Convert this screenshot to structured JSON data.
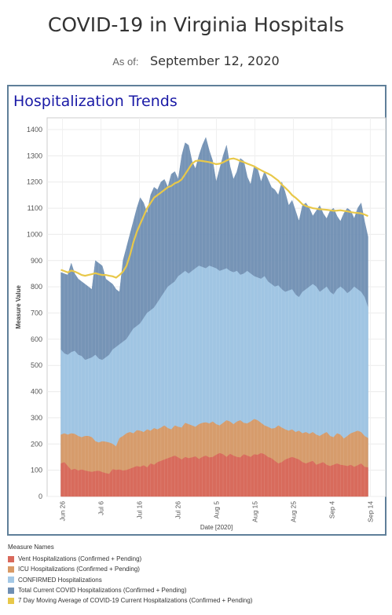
{
  "header": {
    "title": "COVID-19 in Virginia Hospitals",
    "asof_label": "As of:",
    "asof_date": "September 12, 2020"
  },
  "panel": {
    "title": "Hospitalization Trends"
  },
  "legend": {
    "title": "Measure Names",
    "items": [
      {
        "label": "Vent Hospitalizations (Confirmed + Pending)",
        "color": "#d9695c"
      },
      {
        "label": "ICU Hospitalizations (Confirmed + Pending)",
        "color": "#d99a66"
      },
      {
        "label": "CONFIRMED Hospitalizations",
        "color": "#a3c8e6"
      },
      {
        "label": "Total Current COVID Hospitalizations (Confirmed + Pending)",
        "color": "#6f8fb3"
      },
      {
        "label": "7 Day Moving Average of COVID-19 Current Hospitalizations (Confirmed + Pending)",
        "color": "#e8c84a"
      }
    ]
  },
  "chart_data": {
    "type": "area",
    "xlabel": "Date [2020]",
    "ylabel": "Measure Value",
    "ylim": [
      0,
      1400
    ],
    "yticks": [
      0,
      100,
      200,
      300,
      400,
      500,
      600,
      700,
      800,
      900,
      1000,
      1100,
      1200,
      1300,
      1400
    ],
    "xticks": [
      {
        "label": "Jun 26",
        "x": 4
      },
      {
        "label": "Jul 6",
        "x": 14
      },
      {
        "label": "Jul 16",
        "x": 24
      },
      {
        "label": "Jul 26",
        "x": 34
      },
      {
        "label": "Aug 5",
        "x": 44
      },
      {
        "label": "Aug 15",
        "x": 54
      },
      {
        "label": "Aug 25",
        "x": 64
      },
      {
        "label": "Sep 4",
        "x": 74
      },
      {
        "label": "Sep 14",
        "x": 84
      }
    ],
    "x_start": "Jun 22",
    "x_end": "Sep 12",
    "grid": true,
    "series": [
      {
        "name": "Vent Hospitalizations (Confirmed + Pending)",
        "values": [
          125,
          130,
          115,
          100,
          105,
          98,
          102,
          98,
          95,
          93,
          96,
          97,
          92,
          88,
          85,
          103,
          100,
          102,
          98,
          100,
          105,
          110,
          115,
          112,
          118,
          110,
          125,
          120,
          130,
          135,
          140,
          145,
          150,
          155,
          148,
          140,
          150,
          145,
          148,
          152,
          142,
          150,
          155,
          148,
          150,
          158,
          165,
          160,
          150,
          162,
          155,
          150,
          148,
          160,
          155,
          150,
          160,
          158,
          165,
          160,
          150,
          145,
          135,
          125,
          130,
          140,
          145,
          150,
          145,
          140,
          130,
          125,
          130,
          135,
          120,
          125,
          130,
          120,
          115,
          120,
          125,
          120,
          118,
          115,
          120,
          112,
          118,
          125,
          112,
          110
        ]
      },
      {
        "name": "ICU Hospitalizations (Confirmed + Pending)",
        "values": [
          235,
          240,
          235,
          240,
          238,
          230,
          225,
          230,
          230,
          225,
          210,
          205,
          210,
          208,
          205,
          200,
          190,
          222,
          230,
          240,
          245,
          240,
          252,
          250,
          245,
          255,
          250,
          260,
          255,
          262,
          270,
          260,
          255,
          270,
          265,
          262,
          280,
          275,
          270,
          265,
          275,
          280,
          282,
          278,
          285,
          275,
          270,
          280,
          290,
          285,
          275,
          285,
          290,
          280,
          278,
          285,
          295,
          290,
          280,
          270,
          265,
          258,
          260,
          270,
          262,
          255,
          250,
          255,
          245,
          250,
          240,
          245,
          238,
          245,
          235,
          230,
          238,
          245,
          230,
          225,
          240,
          235,
          220,
          230,
          240,
          245,
          250,
          245,
          230,
          222
        ]
      },
      {
        "name": "CONFIRMED Hospitalizations",
        "values": [
          560,
          545,
          540,
          550,
          555,
          540,
          535,
          520,
          525,
          530,
          540,
          525,
          520,
          530,
          540,
          560,
          570,
          580,
          590,
          600,
          620,
          640,
          650,
          660,
          680,
          700,
          710,
          720,
          740,
          760,
          780,
          800,
          810,
          820,
          840,
          850,
          860,
          850,
          860,
          870,
          880,
          875,
          870,
          880,
          875,
          870,
          860,
          865,
          870,
          860,
          855,
          860,
          845,
          850,
          860,
          850,
          840,
          835,
          830,
          840,
          820,
          810,
          800,
          805,
          790,
          780,
          785,
          790,
          770,
          760,
          780,
          790,
          800,
          810,
          800,
          780,
          790,
          800,
          780,
          770,
          790,
          800,
          790,
          775,
          785,
          800,
          790,
          780,
          760,
          720
        ]
      },
      {
        "name": "Total Current COVID Hospitalizations (Confirmed + Pending)",
        "values": [
          855,
          850,
          845,
          890,
          850,
          830,
          820,
          810,
          800,
          790,
          900,
          890,
          880,
          830,
          820,
          810,
          790,
          780,
          900,
          950,
          1000,
          1050,
          1100,
          1140,
          1120,
          1080,
          1150,
          1180,
          1170,
          1200,
          1210,
          1180,
          1230,
          1240,
          1210,
          1300,
          1350,
          1340,
          1280,
          1250,
          1300,
          1340,
          1370,
          1320,
          1280,
          1200,
          1250,
          1300,
          1340,
          1260,
          1210,
          1240,
          1290,
          1280,
          1220,
          1190,
          1260,
          1250,
          1200,
          1240,
          1210,
          1180,
          1170,
          1150,
          1200,
          1160,
          1110,
          1130,
          1090,
          1050,
          1110,
          1120,
          1100,
          1070,
          1090,
          1110,
          1080,
          1060,
          1090,
          1100,
          1070,
          1050,
          1080,
          1100,
          1090,
          1060,
          1100,
          1120,
          1050,
          990
        ]
      },
      {
        "name": "7 Day Moving Average of COVID-19 Current Hospitalizations (Confirmed + Pending)",
        "values": [
          865,
          860,
          855,
          862,
          858,
          852,
          845,
          842,
          845,
          848,
          852,
          848,
          845,
          845,
          842,
          840,
          835,
          845,
          858,
          880,
          920,
          970,
          1010,
          1040,
          1070,
          1100,
          1120,
          1140,
          1150,
          1160,
          1170,
          1180,
          1185,
          1195,
          1200,
          1210,
          1230,
          1250,
          1270,
          1280,
          1282,
          1280,
          1278,
          1276,
          1272,
          1268,
          1270,
          1275,
          1282,
          1288,
          1290,
          1286,
          1280,
          1276,
          1270,
          1265,
          1260,
          1252,
          1245,
          1238,
          1232,
          1225,
          1215,
          1205,
          1190,
          1178,
          1165,
          1150,
          1140,
          1128,
          1115,
          1108,
          1104,
          1100,
          1098,
          1096,
          1095,
          1094,
          1092,
          1090,
          1091,
          1092,
          1090,
          1088,
          1085,
          1083,
          1082,
          1080,
          1076,
          1070
        ]
      }
    ]
  }
}
